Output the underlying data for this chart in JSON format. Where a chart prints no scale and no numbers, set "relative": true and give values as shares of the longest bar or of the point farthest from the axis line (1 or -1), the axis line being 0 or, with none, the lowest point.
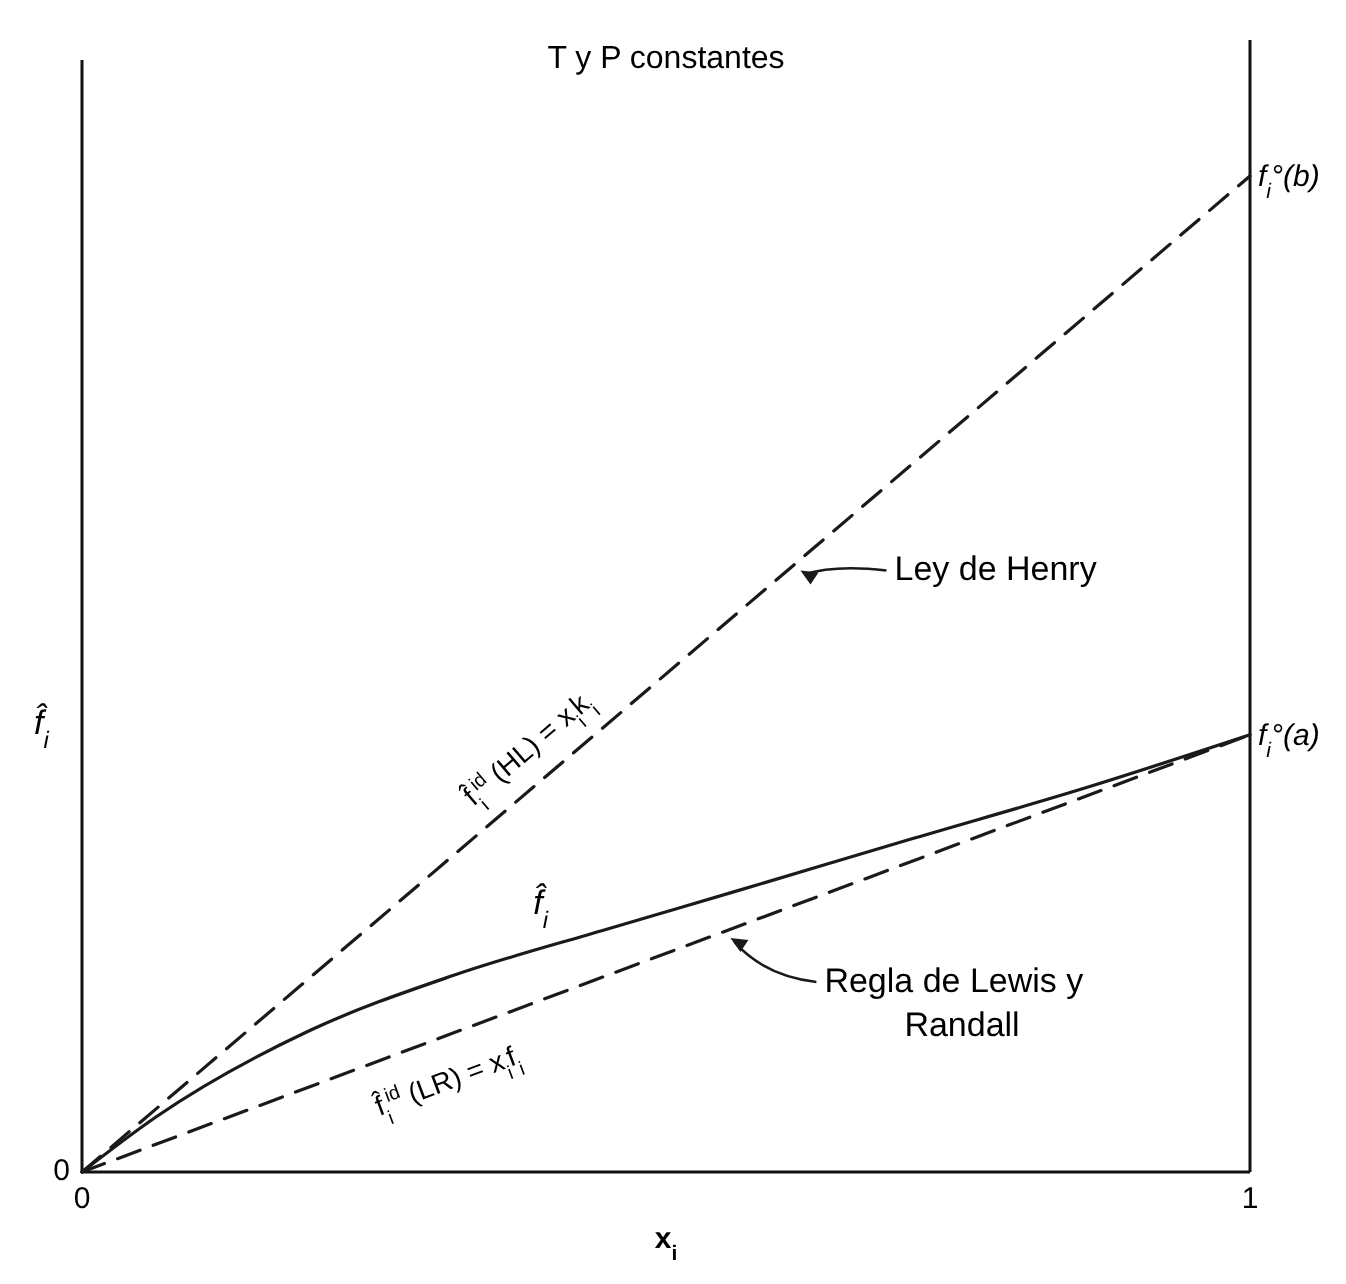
{
  "chart_data": {
    "type": "line",
    "title": "T y P constantes",
    "xlabel": "x$_{i}$",
    "ylabel": "f̂$_{i}$",
    "relative": true,
    "xlim": [
      0,
      1
    ],
    "xticks": [
      0,
      1
    ],
    "grid": false,
    "marker": "none",
    "series": [
      {
        "color": "#1a1a1a",
        "line_style": "dashed",
        "x": [
          0,
          1
        ],
        "values": [
          0,
          1
        ]
      },
      {
        "color": "#1a1a1a",
        "line_style": "dashed",
        "x": [
          0,
          1
        ],
        "values": [
          0,
          0.439
        ]
      },
      {
        "color": "#1a1a1a",
        "line_style": "solid",
        "x": [
          0,
          0.063,
          0.195,
          0.317,
          0.45,
          0.563,
          0.712,
          0.86,
          1
        ],
        "values": [
          0,
          0.055,
          0.142,
          0.197,
          0.244,
          0.283,
          0.335,
          0.386,
          0.439
        ]
      }
    ],
    "annotations": [
      {
        "text": "f$_{i}$°(b)",
        "x": 1,
        "y": 1
      },
      {
        "text": "f$_{i}$°(a)",
        "x": 1,
        "y": 0.439
      },
      {
        "text": "Ley de Henry",
        "x": 0.61,
        "y": 0.61
      },
      {
        "text": "Regla de Lewis y Randall",
        "x": 0.55,
        "y": 0.241
      },
      {
        "text": "f̂$_{i}$$^{id}$ (HL) = x$_{i}$k$_{i}$",
        "x": 0.4,
        "y": 0.4
      },
      {
        "text": "f̂$_{i}$$^{id}$ (LR) = x$_{i}$f$_{i}$",
        "x": 0.3,
        "y": 0.132
      },
      {
        "text": "f̂$_{i}$",
        "x": 0.4,
        "y": 0.235
      },
      "0"
    ]
  }
}
